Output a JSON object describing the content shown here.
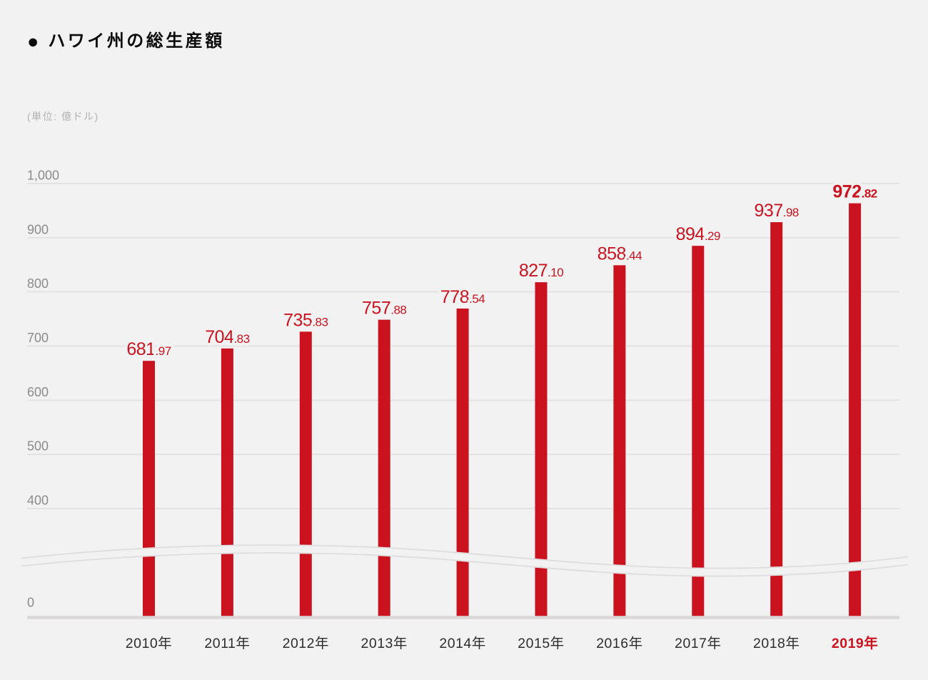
{
  "header": {
    "bullet": "●",
    "title": "ハワイ州の総生産額"
  },
  "unit_label": "(単位: 億ドル)",
  "colors": {
    "background": "#f2f2f2",
    "bar": "#cb131f",
    "value_label": "#cb131f",
    "highlight": "#cb131f",
    "grid": "#e4e2e2",
    "zero_axis": "#d9d7d7",
    "y_tick": "#8c8a8a",
    "x_tick": "#2e2c2c",
    "break_edge": "#dfdddd"
  },
  "chart_data": {
    "type": "bar",
    "title": "ハワイ州の総生産額",
    "unit": "億ドル",
    "categories": [
      "2010年",
      "2011年",
      "2012年",
      "2013年",
      "2014年",
      "2015年",
      "2016年",
      "2017年",
      "2018年",
      "2019年"
    ],
    "values": [
      681.97,
      704.83,
      735.83,
      757.88,
      778.54,
      827.1,
      858.44,
      894.29,
      937.98,
      972.82
    ],
    "value_label_decimals": 2,
    "highlight_index": 9,
    "y_ticks": [
      {
        "value": 1000,
        "label": "1,000"
      },
      {
        "value": 900,
        "label": "900"
      },
      {
        "value": 800,
        "label": "800"
      },
      {
        "value": 700,
        "label": "700"
      },
      {
        "value": 600,
        "label": "600"
      },
      {
        "value": 500,
        "label": "500"
      },
      {
        "value": 400,
        "label": "400"
      },
      {
        "value": 0,
        "label": "0"
      }
    ],
    "ylim": [
      0,
      1000
    ],
    "axis_break": {
      "between": [
        0,
        400
      ]
    },
    "grid": true,
    "legend": "none"
  }
}
